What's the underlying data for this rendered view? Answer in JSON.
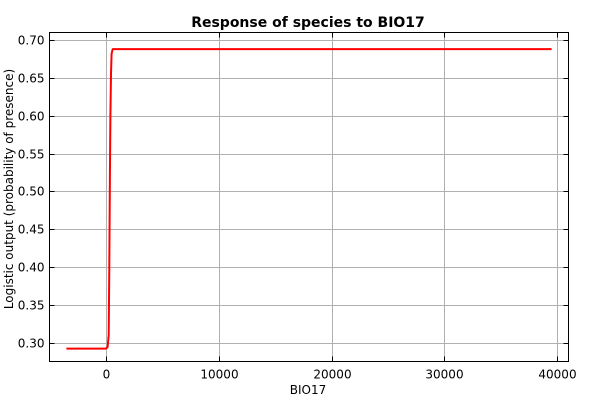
{
  "chart_data": {
    "type": "line",
    "title": "Response of species to BIO17",
    "xlabel": "BIO17",
    "ylabel": "Logistic output (probability of presence)",
    "xlim": [
      -5000,
      41000
    ],
    "ylim": [
      0.275,
      0.71
    ],
    "xticks": [
      0,
      10000,
      20000,
      30000,
      40000
    ],
    "xtick_labels": [
      "0",
      "10000",
      "20000",
      "30000",
      "40000"
    ],
    "yticks": [
      0.3,
      0.35,
      0.4,
      0.45,
      0.5,
      0.55,
      0.6,
      0.65,
      0.7
    ],
    "ytick_labels": [
      "0.30",
      "0.35",
      "0.40",
      "0.45",
      "0.50",
      "0.55",
      "0.60",
      "0.65",
      "0.70"
    ],
    "grid": true,
    "series": [
      {
        "color": "#ff0000",
        "x": [
          -3500,
          0,
          150,
          250,
          300,
          350,
          400,
          450,
          500,
          600,
          39500
        ],
        "y": [
          0.292,
          0.292,
          0.294,
          0.31,
          0.4,
          0.52,
          0.6,
          0.655,
          0.682,
          0.688,
          0.688
        ]
      }
    ]
  }
}
